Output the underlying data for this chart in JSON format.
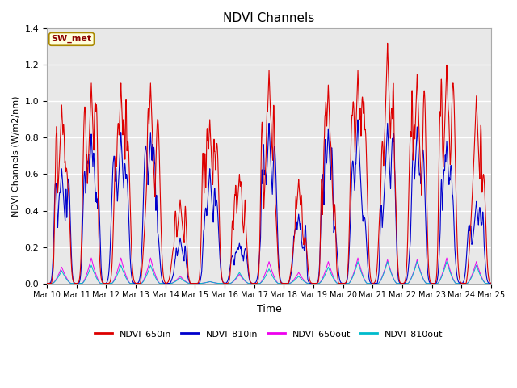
{
  "title": "NDVI Channels",
  "xlabel": "Time",
  "ylabel": "NDVI Channels (W/m2/nm)",
  "annotation": "SW_met",
  "ylim": [
    0,
    1.4
  ],
  "background_color": "#e8e8e8",
  "plot_bg": "#f0f0f0",
  "colors": {
    "NDVI_650in": "#dd0000",
    "NDVI_810in": "#0000cc",
    "NDVI_650out": "#ee00ee",
    "NDVI_810out": "#00bbcc"
  },
  "day_labels": [
    "Mar 10",
    "Mar 11",
    "Mar 12",
    "Mar 13",
    "Mar 14",
    "Mar 15",
    "Mar 16",
    "Mar 17",
    "Mar 18",
    "Mar 19",
    "Mar 20",
    "Mar 21",
    "Mar 22",
    "Mar 23",
    "Mar 24",
    "Mar 25"
  ],
  "day_peaks_650in": [
    0.98,
    1.1,
    1.1,
    1.1,
    0.46,
    0.9,
    0.6,
    1.17,
    0.57,
    1.09,
    1.17,
    1.32,
    1.15,
    1.2,
    1.03,
    0.0
  ],
  "day_peaks_810in": [
    0.63,
    0.82,
    0.83,
    0.83,
    0.25,
    0.63,
    0.22,
    0.88,
    0.38,
    0.85,
    0.9,
    0.88,
    0.86,
    0.78,
    0.45,
    0.0
  ],
  "day_peaks_650out": [
    0.09,
    0.14,
    0.14,
    0.14,
    0.04,
    0.01,
    0.05,
    0.12,
    0.06,
    0.12,
    0.14,
    0.13,
    0.13,
    0.14,
    0.12,
    0.0
  ],
  "day_peaks_810out": [
    0.07,
    0.1,
    0.1,
    0.1,
    0.03,
    0.01,
    0.06,
    0.08,
    0.04,
    0.09,
    0.12,
    0.12,
    0.12,
    0.12,
    0.1,
    0.0
  ],
  "figsize": [
    6.4,
    4.8
  ],
  "dpi": 100
}
